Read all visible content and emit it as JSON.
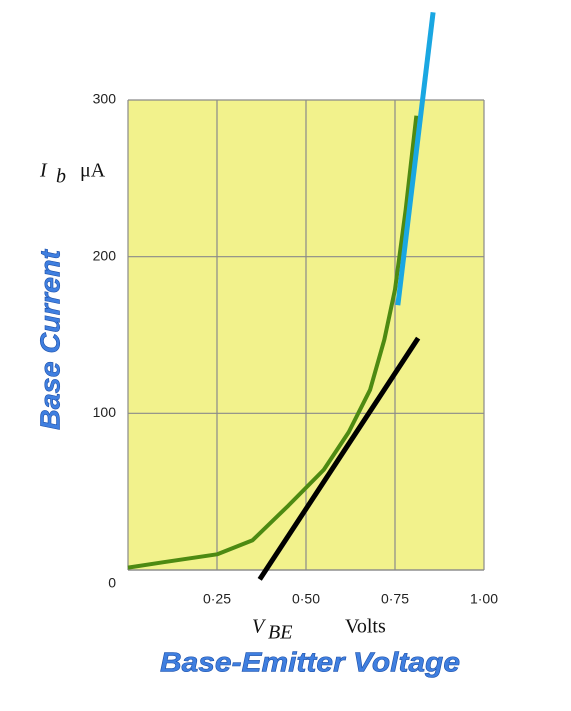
{
  "chart_data": {
    "type": "line",
    "y_label": "Base Current",
    "x_label": "Base-Emitter Voltage",
    "y_quantity": {
      "symbol": "I",
      "subscript": "b",
      "unit": "μA"
    },
    "x_quantity": {
      "symbol": "V",
      "subscript": "BE",
      "unit": "Volts"
    },
    "xlim": [
      0,
      1
    ],
    "ylim": [
      0,
      300
    ],
    "xticks": [
      {
        "value": 0.25,
        "label": "0·25"
      },
      {
        "value": 0.5,
        "label": "0·50"
      },
      {
        "value": 0.75,
        "label": "0·75"
      },
      {
        "value": 1,
        "label": "1·00"
      }
    ],
    "yticks": [
      0,
      100,
      200,
      300
    ],
    "grid": true,
    "background": "#f2f28c",
    "series": [
      {
        "color": "#4d8a12",
        "x": [
          0,
          0.1,
          0.25,
          0.35,
          0.45,
          0.55,
          0.62,
          0.68,
          0.72,
          0.75,
          0.78,
          0.81
        ],
        "values": [
          1.5,
          5,
          10,
          19,
          41,
          64,
          88,
          115,
          147,
          179,
          230,
          290
        ]
      },
      {
        "color": "#000000",
        "x": [
          0.37,
          0.815
        ],
        "values": [
          -6,
          148
        ]
      },
      {
        "color": "#1aa7e2",
        "x": [
          0.758,
          0.857
        ],
        "values": [
          169,
          356
        ]
      }
    ]
  }
}
